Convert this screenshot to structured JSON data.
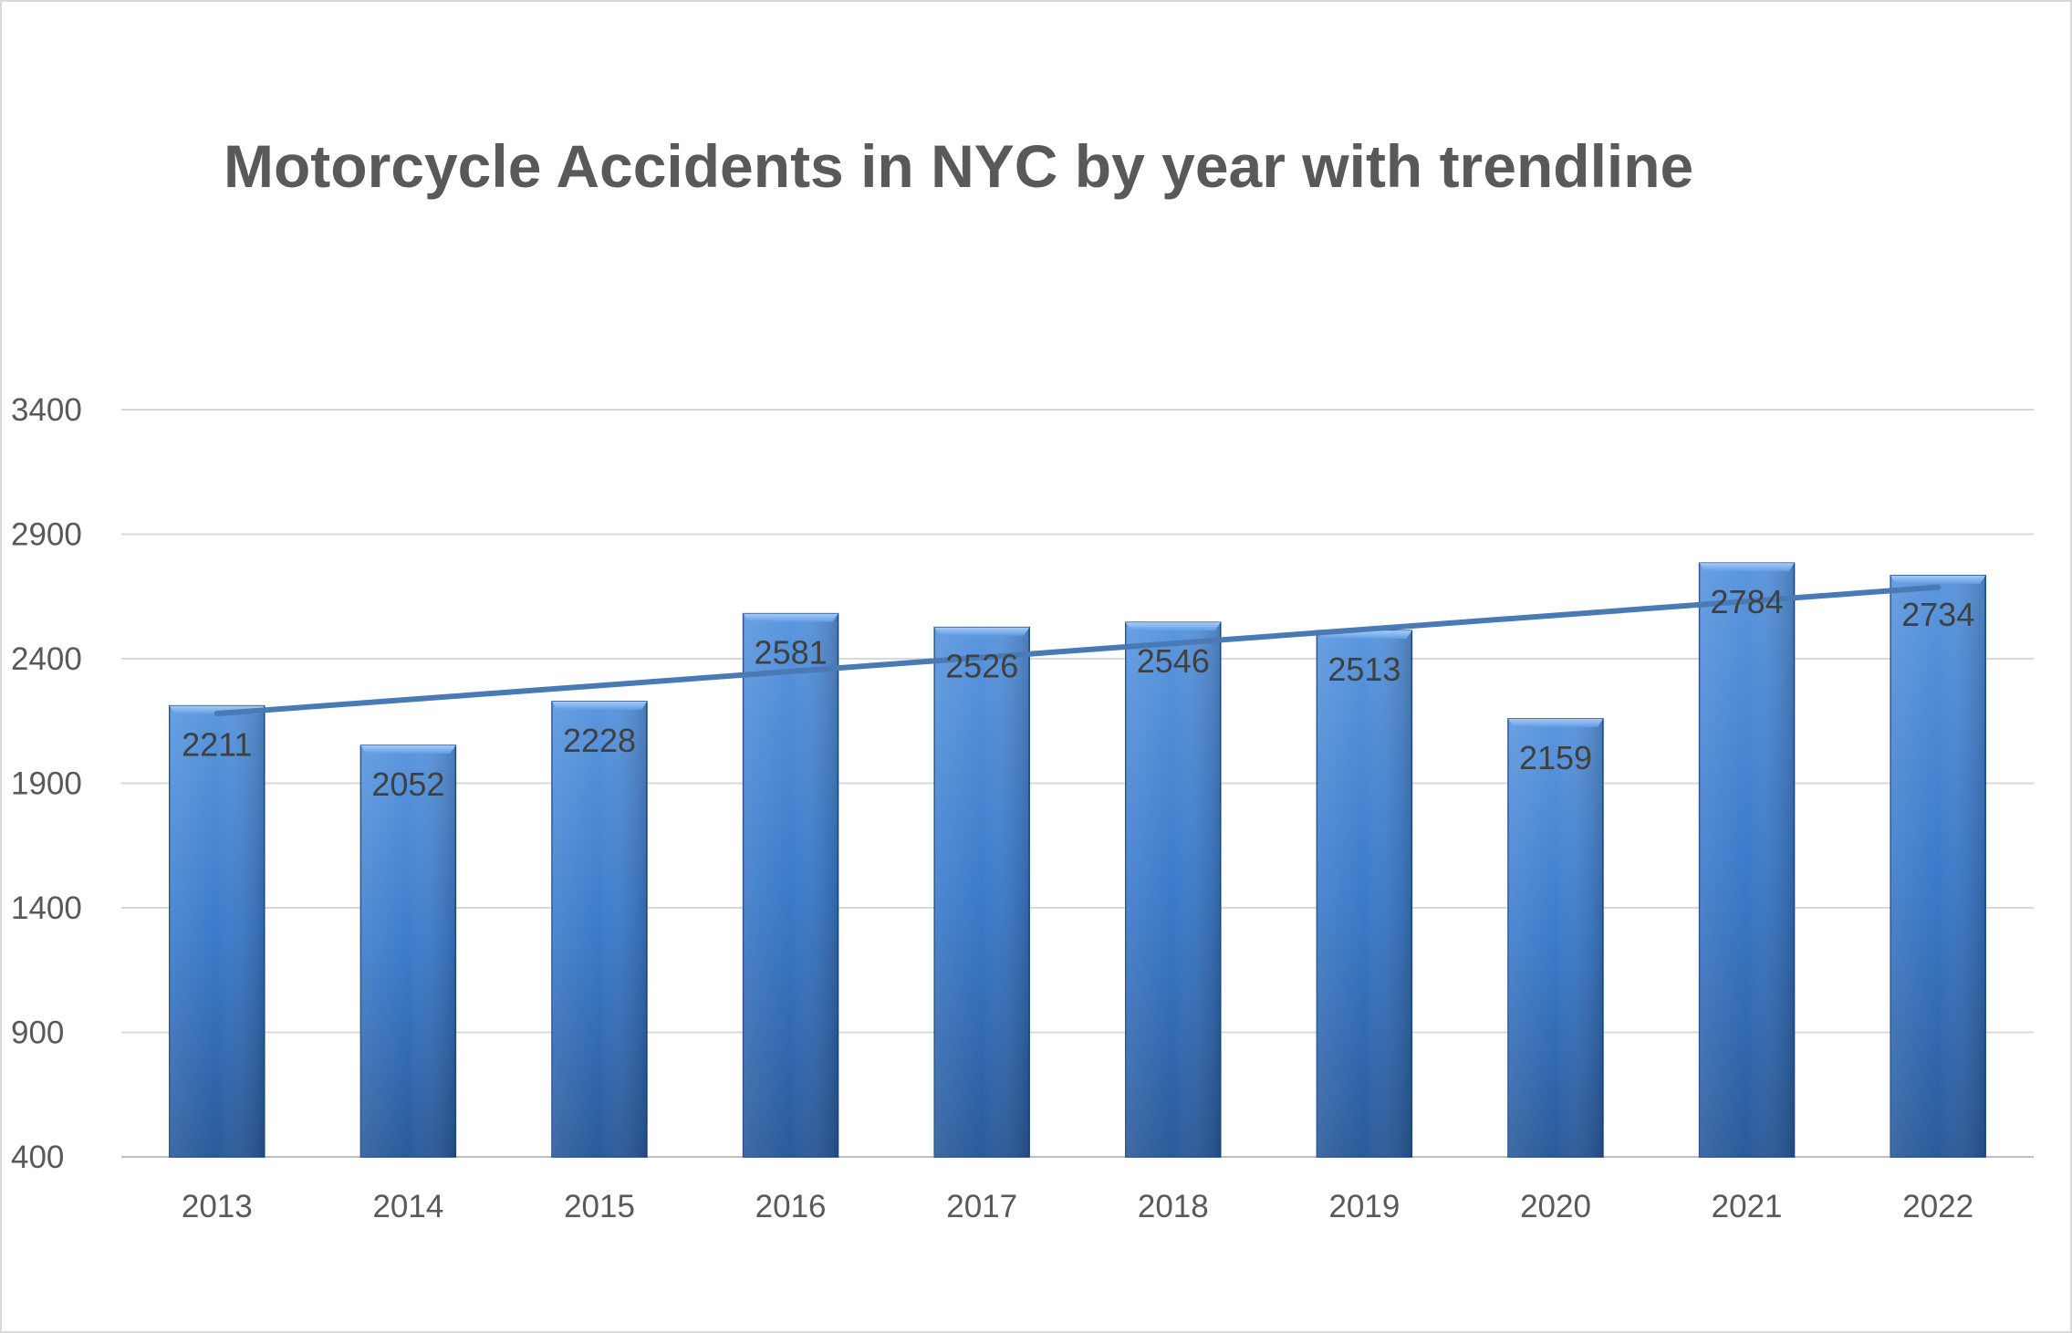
{
  "chart_data": {
    "type": "bar",
    "title": "Motorcycle Accidents in NYC by year with trendline",
    "xlabel": "",
    "ylabel": "",
    "categories": [
      "2013",
      "2014",
      "2015",
      "2016",
      "2017",
      "2018",
      "2019",
      "2020",
      "2021",
      "2022"
    ],
    "series": [
      {
        "values": [
          2211,
          2052,
          2228,
          2581,
          2526,
          2546,
          2513,
          2159,
          2784,
          2734
        ]
      }
    ],
    "data_labels": [
      "2211",
      "2052",
      "2228",
      "2581",
      "2526",
      "2546",
      "2513",
      "2159",
      "2784",
      "2734"
    ],
    "ylim": [
      400,
      3400
    ],
    "yticks": [
      400,
      900,
      1400,
      1900,
      2400,
      2900,
      3400
    ],
    "ytick_labels": [
      "400",
      "900",
      "1400",
      "1900",
      "2400",
      "2900",
      "3400"
    ],
    "gridlines": true,
    "legend": "none",
    "trendline": {
      "type": "linear",
      "color": "#4a7ab5"
    },
    "colors": {
      "bar_light": "#5a96de",
      "bar_mid": "#3b7bcb",
      "bar_dark": "#2a5a9a",
      "grid": "#d9d9d9",
      "text": "#595959"
    }
  }
}
